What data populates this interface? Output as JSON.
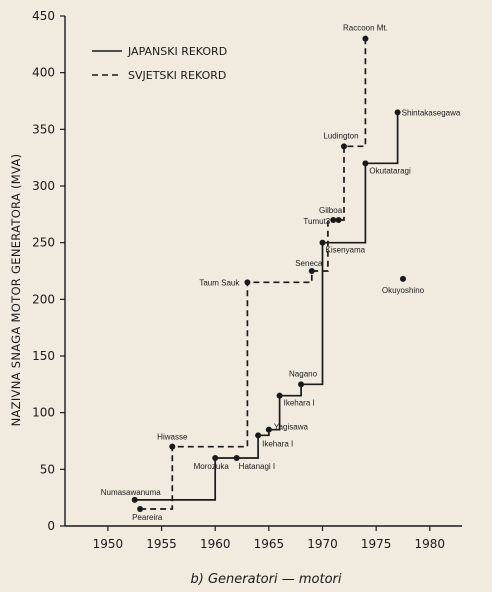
{
  "chart_data": {
    "type": "line",
    "caption": "b) Generatori — motori",
    "ylabel": "NAZIVNA SNAGA MOTOR GENERATORA (MVA)",
    "xlabel": "",
    "xlim": [
      1946,
      1983
    ],
    "ylim": [
      0,
      450
    ],
    "xticks": [
      1950,
      1955,
      1960,
      1965,
      1970,
      1975,
      1980
    ],
    "yticks": [
      0,
      50,
      100,
      150,
      200,
      250,
      300,
      350,
      400,
      450
    ],
    "legend": {
      "placement": "top-left",
      "entries": [
        {
          "label": "JAPANSKI REKORD",
          "style": "solid"
        },
        {
          "label": "SVJETSKI REKORD",
          "style": "dashed"
        }
      ]
    },
    "series": [
      {
        "name": "JAPANSKI REKORD",
        "style": "solid",
        "steps": [
          [
            1952.5,
            23
          ],
          [
            1960,
            23
          ],
          [
            1960,
            60
          ],
          [
            1964,
            60
          ],
          [
            1964,
            80
          ],
          [
            1965,
            80
          ],
          [
            1965,
            85
          ],
          [
            1966,
            85
          ],
          [
            1966,
            115
          ],
          [
            1968,
            115
          ],
          [
            1968,
            125
          ],
          [
            1970,
            125
          ],
          [
            1970,
            250
          ],
          [
            1974,
            250
          ],
          [
            1974,
            320
          ],
          [
            1977,
            320
          ],
          [
            1977,
            365
          ]
        ]
      },
      {
        "name": "SVJETSKI REKORD",
        "style": "dashed",
        "steps": [
          [
            1953,
            15
          ],
          [
            1956,
            15
          ],
          [
            1956,
            70
          ],
          [
            1963,
            70
          ],
          [
            1963,
            215
          ],
          [
            1969,
            215
          ],
          [
            1969,
            225
          ],
          [
            1970.5,
            225
          ],
          [
            1970.5,
            270
          ],
          [
            1972,
            270
          ],
          [
            1972,
            335
          ],
          [
            1974,
            335
          ],
          [
            1974,
            430
          ]
        ]
      }
    ],
    "points": [
      {
        "label": "Numasawanuma",
        "x": 1952.5,
        "y": 23
      },
      {
        "label": "Peareira",
        "x": 1953,
        "y": 15
      },
      {
        "label": "Hiwasse",
        "x": 1956,
        "y": 70
      },
      {
        "label": "Morozuka",
        "x": 1960,
        "y": 60
      },
      {
        "label": "Hatanagi I",
        "x": 1962,
        "y": 60
      },
      {
        "label": "Taum Sauk",
        "x": 1963,
        "y": 215
      },
      {
        "label": "Ikehara I",
        "x": 1964,
        "y": 80
      },
      {
        "label": "Yagisawa",
        "x": 1965,
        "y": 85
      },
      {
        "label": "Ikehara I",
        "x": 1966,
        "y": 115
      },
      {
        "label": "Nagano",
        "x": 1968,
        "y": 125
      },
      {
        "label": "Seneca",
        "x": 1969,
        "y": 225
      },
      {
        "label": "Kisenyama",
        "x": 1970,
        "y": 250
      },
      {
        "label": "Tumut3",
        "x": 1971,
        "y": 270
      },
      {
        "label": "Gilboa",
        "x": 1971.5,
        "y": 270
      },
      {
        "label": "Ludington",
        "x": 1972,
        "y": 335
      },
      {
        "label": "Okutataragi",
        "x": 1974,
        "y": 320
      },
      {
        "label": "Raccoon Mt.",
        "x": 1974,
        "y": 430
      },
      {
        "label": "Shintakasegawa",
        "x": 1977,
        "y": 365
      },
      {
        "label": "Okuyoshino",
        "x": 1977.5,
        "y": 218
      }
    ]
  }
}
